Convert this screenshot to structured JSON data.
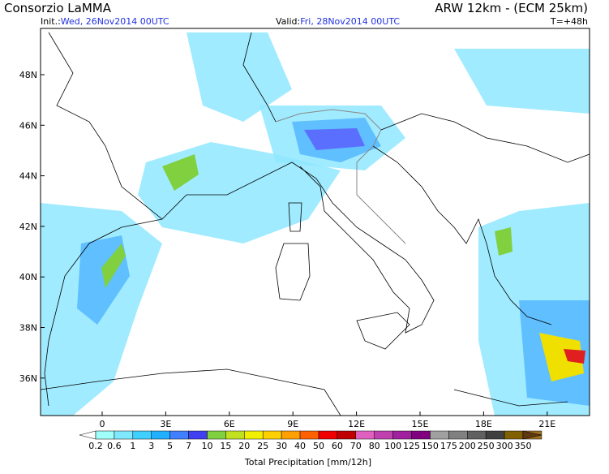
{
  "header": {
    "title": "Consorzio LaMMA",
    "model": "ARW 12km - (ECM 25km)",
    "init_label": "Init.:",
    "init_time": "Wed, 26Nov2014 00UTC",
    "valid_label": "Valid:",
    "valid_time": "Fri, 28Nov2014 00UTC",
    "lead": "T=+48h"
  },
  "map": {
    "lon_labels": [
      "0",
      "3E",
      "6E",
      "9E",
      "12E",
      "15E",
      "18E",
      "21E"
    ],
    "lat_labels": [
      "48N",
      "46N",
      "44N",
      "42N",
      "40N",
      "38N",
      "36N"
    ]
  },
  "colorbar": {
    "title": "Total Precipitation [mm/12h]",
    "labels": [
      "0.2",
      "0.6",
      "1",
      "3",
      "5",
      "7",
      "10",
      "15",
      "20",
      "25",
      "30",
      "40",
      "50",
      "60",
      "70",
      "80",
      "100",
      "125",
      "150",
      "175",
      "200",
      "250",
      "300",
      "350"
    ],
    "colors": [
      "#ffffff",
      "#a0fff8",
      "#80e8ff",
      "#40d0ff",
      "#20b0ff",
      "#4080ff",
      "#4040f0",
      "#80d040",
      "#c0e020",
      "#f0f000",
      "#ffd000",
      "#ffa000",
      "#ff6000",
      "#f00000",
      "#c00000",
      "#e060c0",
      "#c040b0",
      "#a020a0",
      "#800080",
      "#a0a0a0",
      "#808080",
      "#606060",
      "#404040",
      "#806000",
      "#a07020",
      "#603810"
    ]
  }
}
